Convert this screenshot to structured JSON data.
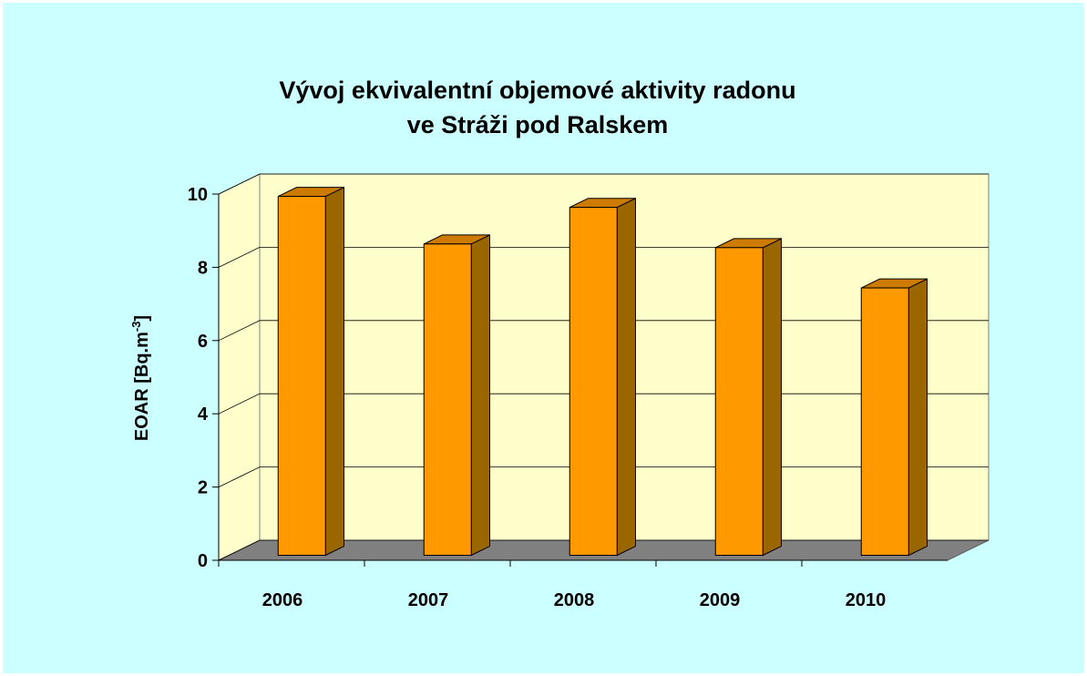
{
  "chart_data": {
    "type": "bar3d",
    "title": [
      "Vývoj ekvivalentní objemové aktivity radonu",
      "ve Stráži pod Ralskem"
    ],
    "y_label": "EOAR [Bq.m",
    "y_label_sup": "-3",
    "y_label_end": "]",
    "categories": [
      "2006",
      "2007",
      "2008",
      "2009",
      "2010"
    ],
    "values": [
      9.8,
      8.5,
      9.5,
      8.4,
      7.3
    ],
    "color": "#ff9900",
    "ylim": [
      0,
      10
    ],
    "yticks": [
      0,
      2,
      4,
      6,
      8,
      10
    ],
    "grid": true
  }
}
